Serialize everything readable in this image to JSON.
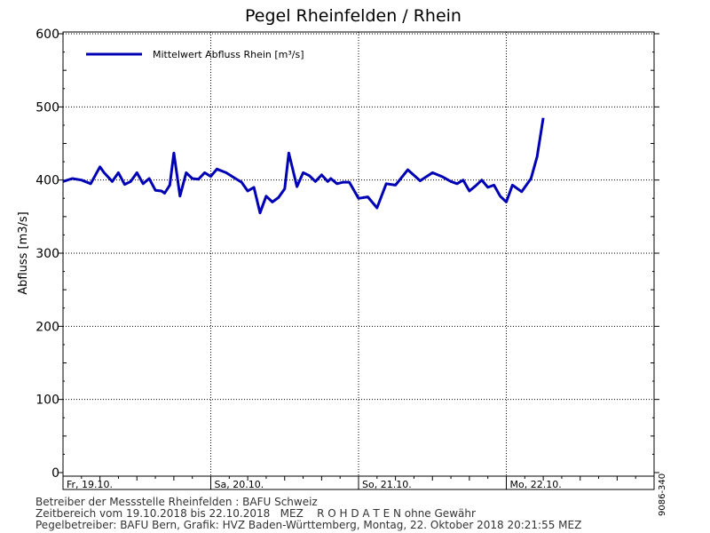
{
  "chart_data": {
    "type": "line",
    "title": "Pegel Rheinfelden / Rhein",
    "ylabel": "Abfluss [m3/s]",
    "ylim": [
      0,
      600
    ],
    "yticks": [
      0,
      100,
      200,
      300,
      400,
      500,
      600
    ],
    "xlim": [
      "2018-10-19 00:00",
      "2018-10-23 00:00"
    ],
    "xticks": [
      {
        "label": "Fr, 19.10.",
        "date": "2018-10-19"
      },
      {
        "label": "Sa, 20.10.",
        "date": "2018-10-20"
      },
      {
        "label": "So, 21.10.",
        "date": "2018-10-21"
      },
      {
        "label": "Mo, 22.10.",
        "date": "2018-10-22"
      }
    ],
    "grid": true,
    "legend_position": "top-left",
    "series": [
      {
        "name": "Mittelwert Abfluss Rhein [m³/s]",
        "color": "#0000b4",
        "x": [
          "2018-10-19 00:00",
          "2018-10-19 01:30",
          "2018-10-19 03:00",
          "2018-10-19 04:30",
          "2018-10-19 06:00",
          "2018-10-19 06:40",
          "2018-10-19 08:00",
          "2018-10-19 09:00",
          "2018-10-19 10:00",
          "2018-10-19 11:00",
          "2018-10-19 12:00",
          "2018-10-19 13:00",
          "2018-10-19 14:00",
          "2018-10-19 15:00",
          "2018-10-19 16:00",
          "2018-10-19 16:30",
          "2018-10-19 17:20",
          "2018-10-19 18:00",
          "2018-10-19 19:00",
          "2018-10-19 20:00",
          "2018-10-19 21:00",
          "2018-10-19 22:00",
          "2018-10-19 23:00",
          "2018-10-20 00:00",
          "2018-10-20 01:00",
          "2018-10-20 02:30",
          "2018-10-20 04:00",
          "2018-10-20 05:00",
          "2018-10-20 06:00",
          "2018-10-20 07:00",
          "2018-10-20 08:00",
          "2018-10-20 09:00",
          "2018-10-20 10:00",
          "2018-10-20 11:00",
          "2018-10-20 12:00",
          "2018-10-20 12:40",
          "2018-10-20 14:00",
          "2018-10-20 15:00",
          "2018-10-20 16:00",
          "2018-10-20 17:00",
          "2018-10-20 18:00",
          "2018-10-20 19:00",
          "2018-10-20 19:30",
          "2018-10-20 20:30",
          "2018-10-20 21:30",
          "2018-10-20 22:30",
          "2018-10-21 00:00",
          "2018-10-21 01:30",
          "2018-10-21 03:00",
          "2018-10-21 04:30",
          "2018-10-21 06:00",
          "2018-10-21 08:00",
          "2018-10-21 10:00",
          "2018-10-21 12:00",
          "2018-10-21 13:30",
          "2018-10-21 15:00",
          "2018-10-21 16:00",
          "2018-10-21 17:00",
          "2018-10-21 18:00",
          "2018-10-21 19:00",
          "2018-10-21 20:00",
          "2018-10-21 21:00",
          "2018-10-21 22:00",
          "2018-10-21 23:00",
          "2018-10-22 00:00",
          "2018-10-22 01:00",
          "2018-10-22 02:30",
          "2018-10-22 04:00",
          "2018-10-22 05:00",
          "2018-10-22 06:00",
          "2018-10-22 07:00",
          "2018-10-22 08:00",
          "2018-10-22 09:00",
          "2018-10-22 10:00",
          "2018-10-22 11:00",
          "2018-10-22 12:00",
          "2018-10-22 13:00",
          "2018-10-22 14:00",
          "2018-10-22 15:00",
          "2018-10-22 16:00",
          "2018-10-22 17:00",
          "2018-10-22 18:00",
          "2018-10-22 19:00",
          "2018-10-22 20:00"
        ],
        "values": [
          398,
          402,
          400,
          395,
          418,
          410,
          398,
          410,
          394,
          398,
          410,
          395,
          402,
          386,
          385,
          382,
          393,
          437,
          378,
          410,
          402,
          401,
          410,
          405,
          415,
          410,
          402,
          397,
          385,
          390,
          355,
          378,
          370,
          376,
          388,
          437,
          391,
          410,
          406,
          398,
          407,
          398,
          402,
          395,
          397,
          397,
          375,
          377,
          362,
          395,
          393,
          414,
          399,
          410,
          405,
          398,
          395,
          400,
          385,
          392,
          400,
          390,
          393,
          378,
          370,
          393,
          384,
          402,
          432,
          485,
          null,
          null,
          null,
          null,
          null,
          null,
          null,
          null,
          null,
          null,
          null,
          null,
          null,
          null
        ]
      }
    ]
  },
  "side_id": "9086-340",
  "footer": {
    "line1": "Betreiber der Messstelle Rheinfelden : BAFU Schweiz",
    "line2": "Zeitbereich vom 19.10.2018 bis 22.10.2018   MEZ    R O H D A T E N ohne Gewähr",
    "line3": "Pegelbetreiber: BAFU Bern, Grafik: HVZ Baden-Württemberg, Montag, 22. Oktober 2018 20:21:55 MEZ"
  }
}
